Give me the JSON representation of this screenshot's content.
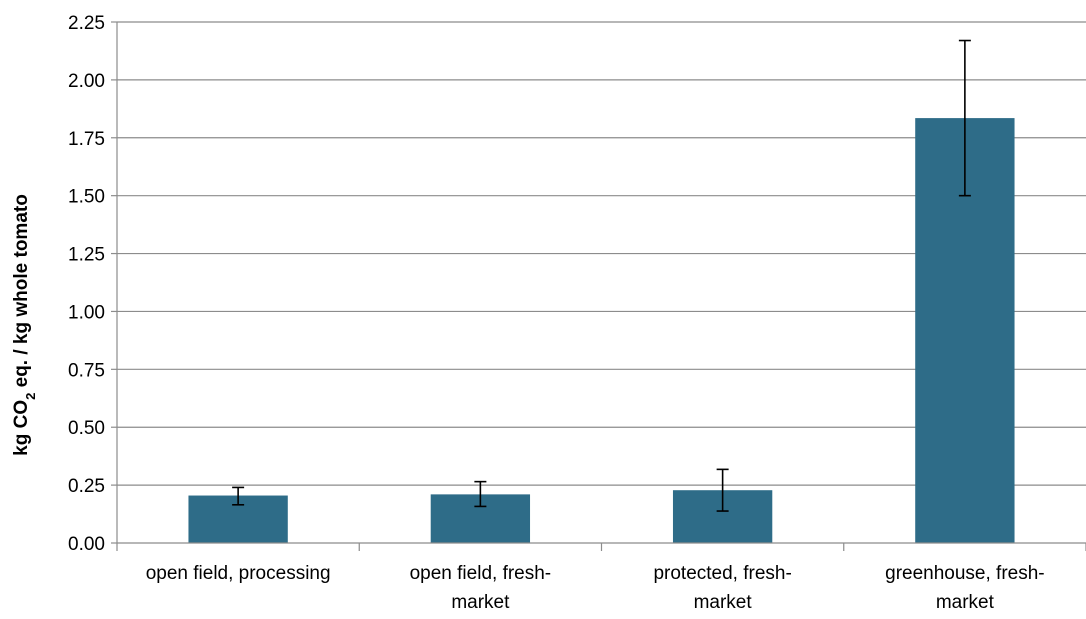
{
  "chart_data": {
    "type": "bar",
    "categories": [
      [
        "open field, processing"
      ],
      [
        "open field, fresh-",
        "market"
      ],
      [
        "protected, fresh-",
        "market"
      ],
      [
        "greenhouse, fresh-",
        "market"
      ]
    ],
    "values": [
      0.205,
      0.21,
      0.228,
      1.835
    ],
    "error_bars": [
      {
        "low": 0.165,
        "high": 0.24
      },
      {
        "low": 0.158,
        "high": 0.265
      },
      {
        "low": 0.138,
        "high": 0.318
      },
      {
        "low": 1.5,
        "high": 2.17
      }
    ],
    "y_ticks": [
      "0.00",
      "0.25",
      "0.50",
      "0.75",
      "1.00",
      "1.25",
      "1.50",
      "1.75",
      "2.00",
      "2.25"
    ],
    "ylim": [
      0,
      2.25
    ],
    "ylabel": {
      "pre": "kg CO",
      "sub": "2",
      "post": " eq. / kg whole tomato"
    },
    "xlabel": "",
    "title": "",
    "grid": true,
    "bar_color": "#2e6c88",
    "gridline_color": "#8c8c8c",
    "axis_color": "#8c8c8c",
    "errorbar_color": "#000000"
  }
}
